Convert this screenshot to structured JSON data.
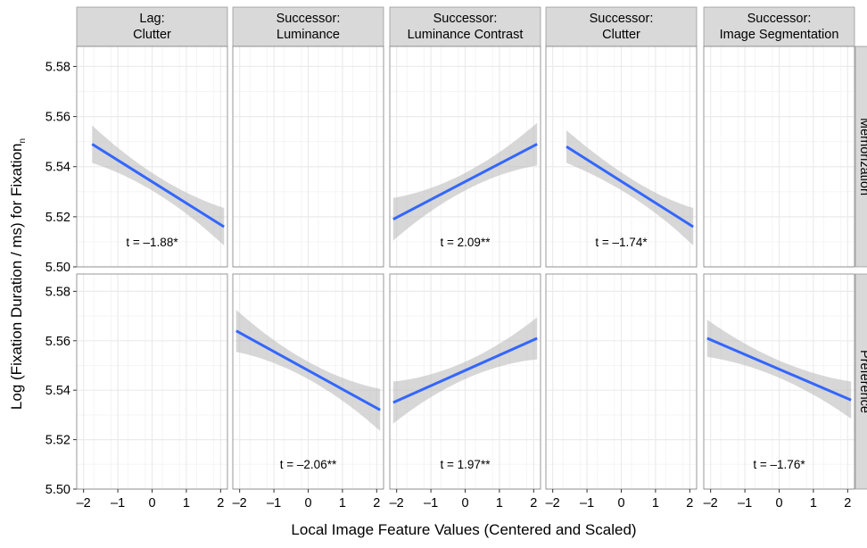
{
  "colors": {
    "panel_bg": "#ffffff",
    "strip_bg": "#d9d9d9",
    "grid_major": "#ebebeb",
    "grid_minor": "#f5f5f5",
    "panel_border": "#7f7f7f",
    "line": "#3366ff",
    "ribbon": "#bdbdbd"
  },
  "chart_data": {
    "type": "line",
    "xlabel": "Local Image Feature Values (Centered and Scaled)",
    "ylabel": "Log (Fixation Duration / ms) for Fixation",
    "ylabel_subscript": "n",
    "x_range": [
      -2.2,
      2.2
    ],
    "x_ticks": [
      -2,
      -1,
      0,
      1,
      2
    ],
    "x_tick_labels": [
      "–2",
      "–1",
      "0",
      "1",
      "2"
    ],
    "columns": [
      {
        "line1": "Lag:",
        "line2": "Clutter"
      },
      {
        "line1": "Successor:",
        "line2": "Luminance"
      },
      {
        "line1": "Successor:",
        "line2": "Luminance Contrast"
      },
      {
        "line1": "Successor:",
        "line2": "Clutter"
      },
      {
        "line1": "Successor:",
        "line2": "Image Segmentation"
      }
    ],
    "rows": [
      {
        "label": "Memorization",
        "ylim": [
          5.5,
          5.588
        ],
        "y_ticks": [
          5.5,
          5.52,
          5.54,
          5.56,
          5.58
        ],
        "y_tick_labels": [
          "5.50",
          "5.52",
          "5.54",
          "5.56",
          "5.58"
        ],
        "panels": [
          {
            "x0": -1.75,
            "x1": 2.1,
            "y0": 5.549,
            "y1": 5.516,
            "band0": 0.0075,
            "band1": 0.0075,
            "bandMid": 0.0035,
            "t_label": "t = –1.88*"
          },
          null,
          {
            "x0": -2.1,
            "x1": 2.1,
            "y0": 5.519,
            "y1": 5.549,
            "band0": 0.0085,
            "band1": 0.0085,
            "bandMid": 0.0035,
            "t_label": "t = 2.09**"
          },
          {
            "x0": -1.6,
            "x1": 2.1,
            "y0": 5.548,
            "y1": 5.516,
            "band0": 0.0065,
            "band1": 0.0075,
            "bandMid": 0.0035,
            "t_label": "t = –1.74*"
          },
          null
        ]
      },
      {
        "label": "Preference",
        "ylim": [
          5.5,
          5.587
        ],
        "y_ticks": [
          5.5,
          5.52,
          5.54,
          5.56,
          5.58
        ],
        "y_tick_labels": [
          "5.50",
          "5.52",
          "5.54",
          "5.56",
          "5.58"
        ],
        "panels": [
          null,
          {
            "x0": -2.1,
            "x1": 2.1,
            "y0": 5.564,
            "y1": 5.532,
            "band0": 0.0085,
            "band1": 0.0085,
            "bandMid": 0.0035,
            "t_label": "t = –2.06**"
          },
          {
            "x0": -2.1,
            "x1": 2.1,
            "y0": 5.535,
            "y1": 5.561,
            "band0": 0.0085,
            "band1": 0.0085,
            "bandMid": 0.0035,
            "t_label": "t = 1.97**"
          },
          null,
          {
            "x0": -2.1,
            "x1": 2.1,
            "y0": 5.561,
            "y1": 5.536,
            "band0": 0.0075,
            "band1": 0.0075,
            "bandMid": 0.0035,
            "t_label": "t = –1.76*"
          }
        ]
      }
    ]
  }
}
